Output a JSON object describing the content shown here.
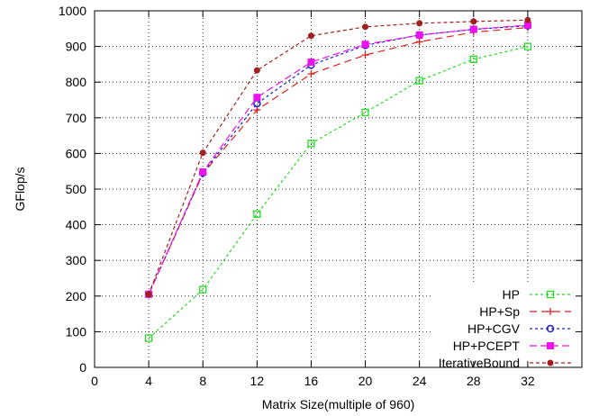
{
  "chart_data": {
    "type": "line",
    "title": "",
    "xlabel": "Matrix Size(multiple of 960)",
    "ylabel": "GFlop/s",
    "xlim": [
      0,
      36
    ],
    "ylim": [
      0,
      1000
    ],
    "x_ticks": [
      0,
      4,
      8,
      12,
      16,
      20,
      24,
      28,
      32
    ],
    "y_ticks": [
      0,
      100,
      200,
      300,
      400,
      500,
      600,
      700,
      800,
      900,
      1000
    ],
    "grid": true,
    "legend_position": "bottom-right",
    "x": [
      4,
      8,
      12,
      16,
      20,
      24,
      28,
      32
    ],
    "series": [
      {
        "name": "HP",
        "color": "#22dd22",
        "marker": "square-open",
        "dash": "3,3",
        "values": [
          82,
          218,
          430,
          628,
          715,
          804,
          864,
          900
        ]
      },
      {
        "name": "HP+Sp",
        "color": "#dd2222",
        "marker": "plus",
        "dash": "8,5",
        "values": [
          205,
          543,
          722,
          823,
          876,
          913,
          940,
          953
        ]
      },
      {
        "name": "HP+CGV",
        "color": "#1a1acc",
        "marker": "circle-open",
        "dash": "3,3",
        "values": [
          205,
          545,
          740,
          848,
          903,
          932,
          948,
          958
        ]
      },
      {
        "name": "HP+PCEPT",
        "color": "#ee11ee",
        "marker": "square-filled",
        "dash": "8,4",
        "values": [
          205,
          548,
          757,
          856,
          906,
          932,
          948,
          960
        ]
      },
      {
        "name": "IterativeBound",
        "color": "#a02020",
        "marker": "circle-filled",
        "dash": "4,3",
        "values": [
          205,
          602,
          833,
          930,
          955,
          965,
          970,
          974
        ]
      }
    ]
  }
}
